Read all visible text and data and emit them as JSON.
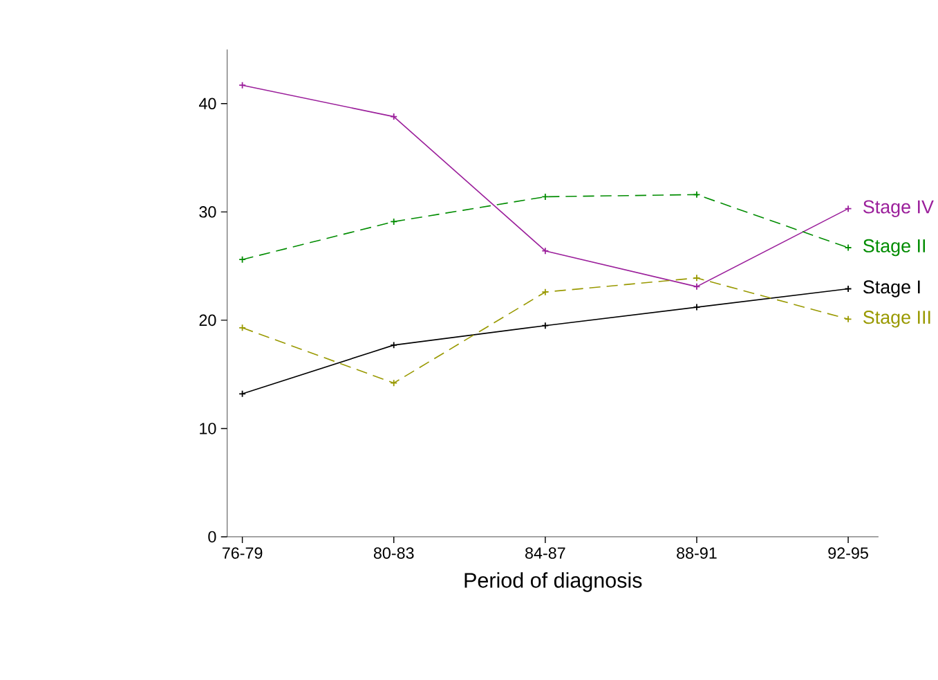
{
  "chart_data": {
    "type": "line",
    "xlabel": "Period of diagnosis",
    "categories": [
      "76-79",
      "80-83",
      "84-87",
      "88-91",
      "92-95"
    ],
    "ylim": [
      0,
      45
    ],
    "yticks": [
      0,
      10,
      20,
      30,
      40
    ],
    "grid": false,
    "legend": false,
    "marker": "cross",
    "series": [
      {
        "name": "Stage IV",
        "color": "#9b1f9b",
        "line_style": "solid",
        "values": [
          41.7,
          38.8,
          26.4,
          23.1,
          30.3
        ]
      },
      {
        "name": "Stage II",
        "color": "#008c00",
        "line_style": "dashed",
        "values": [
          25.6,
          29.1,
          31.4,
          31.6,
          26.7
        ]
      },
      {
        "name": "Stage I",
        "color": "#000000",
        "line_style": "solid",
        "values": [
          13.2,
          17.7,
          19.5,
          21.2,
          22.9
        ]
      },
      {
        "name": "Stage III",
        "color": "#999900",
        "line_style": "dashed",
        "values": [
          19.3,
          14.2,
          22.6,
          23.9,
          20.1
        ]
      }
    ]
  }
}
